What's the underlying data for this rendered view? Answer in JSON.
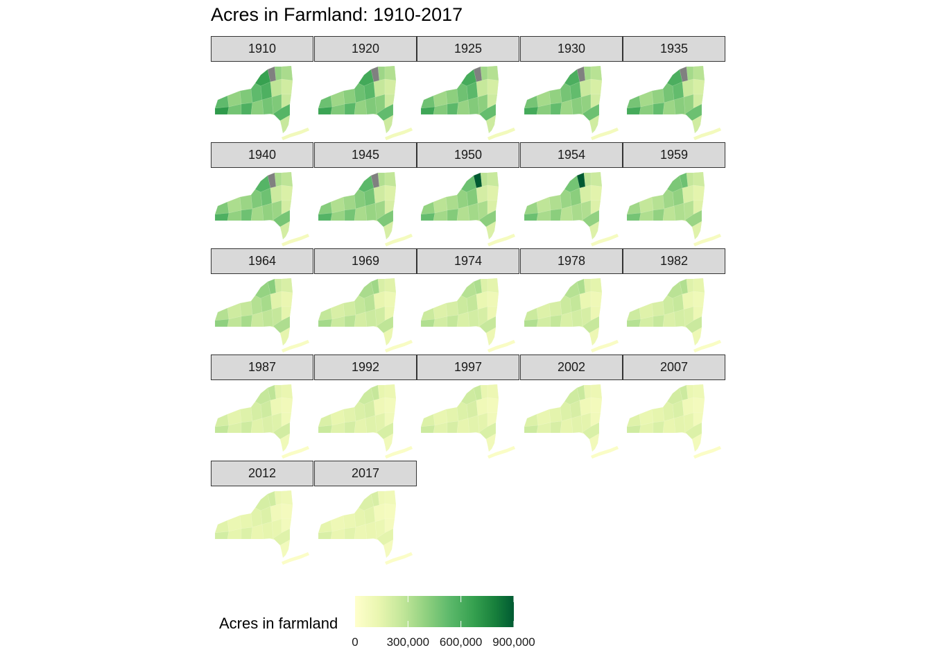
{
  "title": "Acres in Farmland: 1910-2017",
  "map_data": {
    "type": "small-multiple choropleth",
    "region": "New York State counties",
    "panels": [
      {
        "year": "1910",
        "level": 0.62,
        "has_missing": true
      },
      {
        "year": "1920",
        "level": 0.58,
        "has_missing": true
      },
      {
        "year": "1925",
        "level": 0.57,
        "has_missing": true
      },
      {
        "year": "1930",
        "level": 0.55,
        "has_missing": true
      },
      {
        "year": "1935",
        "level": 0.55,
        "has_missing": true
      },
      {
        "year": "1940",
        "level": 0.52,
        "has_missing": true
      },
      {
        "year": "1945",
        "level": 0.5,
        "has_missing": true
      },
      {
        "year": "1950",
        "level": 0.46,
        "has_missing": false
      },
      {
        "year": "1954",
        "level": 0.44,
        "has_missing": false
      },
      {
        "year": "1959",
        "level": 0.42,
        "has_missing": false
      },
      {
        "year": "1964",
        "level": 0.36,
        "has_missing": false
      },
      {
        "year": "1969",
        "level": 0.31,
        "has_missing": false
      },
      {
        "year": "1974",
        "level": 0.28,
        "has_missing": false
      },
      {
        "year": "1978",
        "level": 0.28,
        "has_missing": false
      },
      {
        "year": "1982",
        "level": 0.27,
        "has_missing": false
      },
      {
        "year": "1987",
        "level": 0.24,
        "has_missing": false
      },
      {
        "year": "1992",
        "level": 0.22,
        "has_missing": false
      },
      {
        "year": "1997",
        "level": 0.21,
        "has_missing": false
      },
      {
        "year": "2002",
        "level": 0.21,
        "has_missing": false
      },
      {
        "year": "2007",
        "level": 0.2,
        "has_missing": false
      },
      {
        "year": "2012",
        "level": 0.19,
        "has_missing": false
      },
      {
        "year": "2017",
        "level": 0.17,
        "has_missing": false
      }
    ],
    "missing_color": "#808080",
    "strip_fill": "#d9d9d9"
  },
  "legend": {
    "title": "Acres in farmland",
    "ticks": [
      "0",
      "300,000",
      "600,000",
      "900,000"
    ],
    "tick_values": [
      0,
      300000,
      600000,
      900000
    ],
    "max_value": 900000,
    "colors": [
      "#ffffcc",
      "#d9f0a3",
      "#addd8e",
      "#78c679",
      "#41ab5d",
      "#238443",
      "#006837",
      "#004529"
    ]
  }
}
